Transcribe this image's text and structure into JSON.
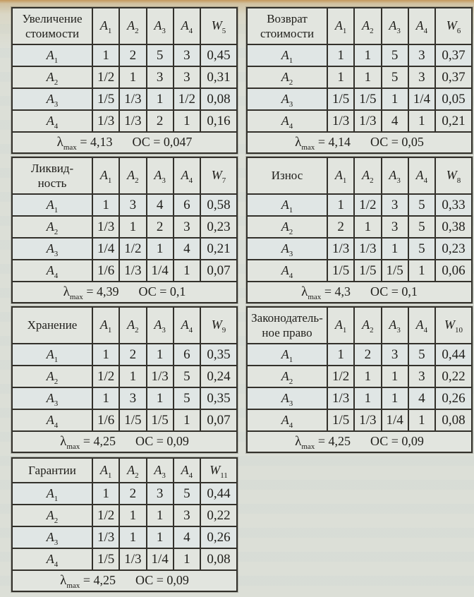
{
  "colors": {
    "paper": "#dcdfd7",
    "cell": "#e2e5df",
    "ink": "#23221e",
    "border": "#33312b",
    "scan_edge_tan": "#c49454"
  },
  "labels": {
    "lambda_base": "λ",
    "lambda_sub": "max",
    "equals": "=",
    "oc": "ОС"
  },
  "tables": [
    {
      "name": "increase-value",
      "title_lines": [
        "Увеличение",
        "стоимости"
      ],
      "single_line_header": false,
      "col_headers": [
        {
          "base": "A",
          "sub": "1"
        },
        {
          "base": "A",
          "sub": "2"
        },
        {
          "base": "A",
          "sub": "3"
        },
        {
          "base": "A",
          "sub": "4"
        },
        {
          "base": "W",
          "sub": "5"
        }
      ],
      "rows": [
        {
          "label": {
            "base": "A",
            "sub": "1"
          },
          "values": [
            "1",
            "2",
            "5",
            "3",
            "0,45"
          ]
        },
        {
          "label": {
            "base": "A",
            "sub": "2"
          },
          "values": [
            "1/2",
            "1",
            "3",
            "3",
            "0,31"
          ]
        },
        {
          "label": {
            "base": "A",
            "sub": "3"
          },
          "values": [
            "1/5",
            "1/3",
            "1",
            "1/2",
            "0,08"
          ]
        },
        {
          "label": {
            "base": "A",
            "sub": "4"
          },
          "values": [
            "1/3",
            "1/3",
            "2",
            "1",
            "0,16"
          ]
        }
      ],
      "lambda_max": "4,13",
      "oc": "0,047"
    },
    {
      "name": "return-value",
      "title_lines": [
        "Возврат",
        "стоимости"
      ],
      "single_line_header": false,
      "col_headers": [
        {
          "base": "A",
          "sub": "1"
        },
        {
          "base": "A",
          "sub": "2"
        },
        {
          "base": "A",
          "sub": "3"
        },
        {
          "base": "A",
          "sub": "4"
        },
        {
          "base": "W",
          "sub": "6"
        }
      ],
      "rows": [
        {
          "label": {
            "base": "A",
            "sub": "1"
          },
          "values": [
            "1",
            "1",
            "5",
            "3",
            "0,37"
          ]
        },
        {
          "label": {
            "base": "A",
            "sub": "2"
          },
          "values": [
            "1",
            "1",
            "5",
            "3",
            "0,37"
          ]
        },
        {
          "label": {
            "base": "A",
            "sub": "3"
          },
          "values": [
            "1/5",
            "1/5",
            "1",
            "1/4",
            "0,05"
          ]
        },
        {
          "label": {
            "base": "A",
            "sub": "4"
          },
          "values": [
            "1/3",
            "1/3",
            "4",
            "1",
            "0,21"
          ]
        }
      ],
      "lambda_max": "4,14",
      "oc": "0,05"
    },
    {
      "name": "liquidity",
      "title_lines": [
        "Ликвид-",
        "ность"
      ],
      "single_line_header": false,
      "col_headers": [
        {
          "base": "A",
          "sub": "1"
        },
        {
          "base": "A",
          "sub": "2"
        },
        {
          "base": "A",
          "sub": "3"
        },
        {
          "base": "A",
          "sub": "4"
        },
        {
          "base": "W",
          "sub": "7"
        }
      ],
      "rows": [
        {
          "label": {
            "base": "A",
            "sub": "1"
          },
          "values": [
            "1",
            "3",
            "4",
            "6",
            "0,58"
          ]
        },
        {
          "label": {
            "base": "A",
            "sub": "2"
          },
          "values": [
            "1/3",
            "1",
            "2",
            "3",
            "0,23"
          ]
        },
        {
          "label": {
            "base": "A",
            "sub": "3"
          },
          "values": [
            "1/4",
            "1/2",
            "1",
            "4",
            "0,21"
          ]
        },
        {
          "label": {
            "base": "A",
            "sub": "4"
          },
          "values": [
            "1/6",
            "1/3",
            "1/4",
            "1",
            "0,07"
          ]
        }
      ],
      "lambda_max": "4,39",
      "oc": "0,1"
    },
    {
      "name": "wear",
      "title_lines": [
        "Износ"
      ],
      "single_line_header": false,
      "col_headers": [
        {
          "base": "A",
          "sub": "1"
        },
        {
          "base": "A",
          "sub": "2"
        },
        {
          "base": "A",
          "sub": "3"
        },
        {
          "base": "A",
          "sub": "4"
        },
        {
          "base": "W",
          "sub": "8"
        }
      ],
      "rows": [
        {
          "label": {
            "base": "A",
            "sub": "1"
          },
          "values": [
            "1",
            "1/2",
            "3",
            "5",
            "0,33"
          ]
        },
        {
          "label": {
            "base": "A",
            "sub": "2"
          },
          "values": [
            "2",
            "1",
            "3",
            "5",
            "0,38"
          ]
        },
        {
          "label": {
            "base": "A",
            "sub": "3"
          },
          "values": [
            "1/3",
            "1/3",
            "1",
            "5",
            "0,23"
          ]
        },
        {
          "label": {
            "base": "A",
            "sub": "4"
          },
          "values": [
            "1/5",
            "1/5",
            "1/5",
            "1",
            "0,06"
          ]
        }
      ],
      "lambda_max": "4,3",
      "oc": "0,1"
    },
    {
      "name": "storage",
      "title_lines": [
        "Хранение"
      ],
      "single_line_header": false,
      "col_headers": [
        {
          "base": "A",
          "sub": "1"
        },
        {
          "base": "A",
          "sub": "2"
        },
        {
          "base": "A",
          "sub": "3"
        },
        {
          "base": "A",
          "sub": "4"
        },
        {
          "base": "W",
          "sub": "9"
        }
      ],
      "rows": [
        {
          "label": {
            "base": "A",
            "sub": "1"
          },
          "values": [
            "1",
            "2",
            "1",
            "6",
            "0,35"
          ]
        },
        {
          "label": {
            "base": "A",
            "sub": "2"
          },
          "values": [
            "1/2",
            "1",
            "1/3",
            "5",
            "0,24"
          ]
        },
        {
          "label": {
            "base": "A",
            "sub": "3"
          },
          "values": [
            "1",
            "3",
            "1",
            "5",
            "0,35"
          ]
        },
        {
          "label": {
            "base": "A",
            "sub": "4"
          },
          "values": [
            "1/6",
            "1/5",
            "1/5",
            "1",
            "0,07"
          ]
        }
      ],
      "lambda_max": "4,25",
      "oc": "0,09"
    },
    {
      "name": "legislative-law",
      "title_lines": [
        "Законодатель-",
        "ное право"
      ],
      "single_line_header": false,
      "col_headers": [
        {
          "base": "A",
          "sub": "1"
        },
        {
          "base": "A",
          "sub": "2"
        },
        {
          "base": "A",
          "sub": "3"
        },
        {
          "base": "A",
          "sub": "4"
        },
        {
          "base": "W",
          "sub": "10"
        }
      ],
      "rows": [
        {
          "label": {
            "base": "A",
            "sub": "1"
          },
          "values": [
            "1",
            "2",
            "3",
            "5",
            "0,44"
          ]
        },
        {
          "label": {
            "base": "A",
            "sub": "2"
          },
          "values": [
            "1/2",
            "1",
            "1",
            "3",
            "0,22"
          ]
        },
        {
          "label": {
            "base": "A",
            "sub": "3"
          },
          "values": [
            "1/3",
            "1",
            "1",
            "4",
            "0,26"
          ]
        },
        {
          "label": {
            "base": "A",
            "sub": "4"
          },
          "values": [
            "1/5",
            "1/3",
            "1/4",
            "1",
            "0,08"
          ]
        }
      ],
      "lambda_max": "4,25",
      "oc": "0,09"
    },
    {
      "name": "guarantees",
      "title_lines": [
        "Гарантии"
      ],
      "single_line_header": true,
      "col_headers": [
        {
          "base": "A",
          "sub": "1"
        },
        {
          "base": "A",
          "sub": "2"
        },
        {
          "base": "A",
          "sub": "3"
        },
        {
          "base": "A",
          "sub": "4"
        },
        {
          "base": "W",
          "sub": "11"
        }
      ],
      "rows": [
        {
          "label": {
            "base": "A",
            "sub": "1"
          },
          "values": [
            "1",
            "2",
            "3",
            "5",
            "0,44"
          ]
        },
        {
          "label": {
            "base": "A",
            "sub": "2"
          },
          "values": [
            "1/2",
            "1",
            "1",
            "3",
            "0,22"
          ]
        },
        {
          "label": {
            "base": "A",
            "sub": "3"
          },
          "values": [
            "1/3",
            "1",
            "1",
            "4",
            "0,26"
          ]
        },
        {
          "label": {
            "base": "A",
            "sub": "4"
          },
          "values": [
            "1/5",
            "1/3",
            "1/4",
            "1",
            "0,08"
          ]
        }
      ],
      "lambda_max": "4,25",
      "oc": "0,09"
    }
  ]
}
